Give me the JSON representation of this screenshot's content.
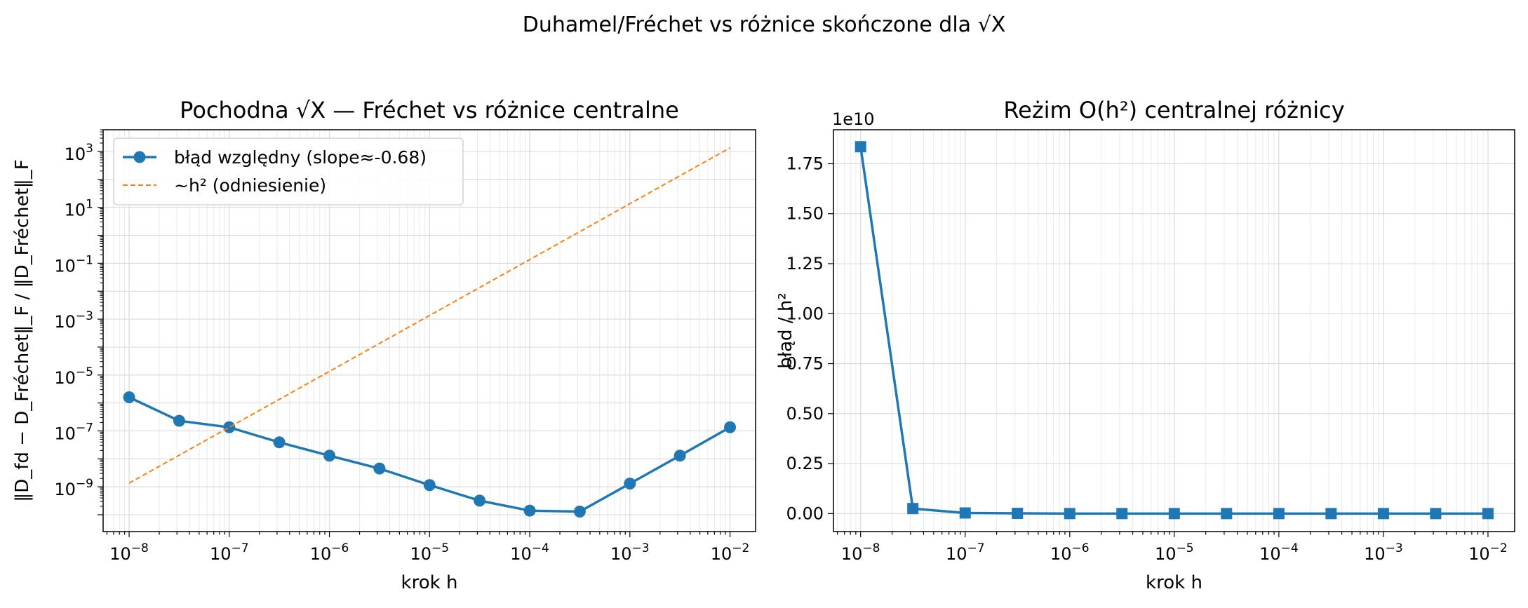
{
  "figure": {
    "suptitle": "Duhamel/Fréchet vs różnice skończone dla √X"
  },
  "colors": {
    "series_blue": "#1f77b4",
    "reference_orange": "#ff7f0e",
    "grid": "#d9d9d9",
    "axes": "#000000"
  },
  "chart_data": [
    {
      "type": "line",
      "title": "Pochodna √X — Fréchet vs różnice centralne",
      "xlabel": "krok h",
      "ylabel": "‖D_fd − D_Fréchet‖_F / ‖D_Fréchet‖_F",
      "xscale": "log",
      "yscale": "log",
      "xlim": [
        5.5e-09,
        0.018
      ],
      "ylim": [
        2.5e-11,
        6000.0
      ],
      "xticks": [
        {
          "value": 1e-08,
          "base": "10",
          "exp": "−8"
        },
        {
          "value": 1e-07,
          "base": "10",
          "exp": "−7"
        },
        {
          "value": 1e-06,
          "base": "10",
          "exp": "−6"
        },
        {
          "value": 1e-05,
          "base": "10",
          "exp": "−5"
        },
        {
          "value": 0.0001,
          "base": "10",
          "exp": "−4"
        },
        {
          "value": 0.001,
          "base": "10",
          "exp": "−3"
        },
        {
          "value": 0.01,
          "base": "10",
          "exp": "−2"
        }
      ],
      "yticks": [
        {
          "value": 1e-09,
          "base": "10",
          "exp": "−9"
        },
        {
          "value": 1e-07,
          "base": "10",
          "exp": "−7"
        },
        {
          "value": 1e-05,
          "base": "10",
          "exp": "−5"
        },
        {
          "value": 0.001,
          "base": "10",
          "exp": "−3"
        },
        {
          "value": 0.1,
          "base": "10",
          "exp": "−1"
        },
        {
          "value": 10,
          "base": "10",
          "exp": "1"
        },
        {
          "value": 1000,
          "base": "10",
          "exp": "3"
        }
      ],
      "grid": true,
      "legend_position": "upper-left",
      "series": [
        {
          "name": "błąd względny (slope≈-0.68)",
          "style": "solid-marker-circle",
          "color": "#1f77b4",
          "x": [
            1e-08,
            3.16e-08,
            1e-07,
            3.16e-07,
            1e-06,
            3.16e-06,
            1e-05,
            3.16e-05,
            0.0001,
            0.000316,
            0.001,
            0.00316,
            0.01
          ],
          "y": [
            1.6e-06,
            2.3e-07,
            1.35e-07,
            3.9e-08,
            1.3e-08,
            4.5e-09,
            1.15e-09,
            3.2e-10,
            1.4e-10,
            1.3e-10,
            1.3e-09,
            1.3e-08,
            1.35e-07
          ]
        },
        {
          "name": "~h² (odniesienie)",
          "style": "dashed",
          "color": "#ff7f0e",
          "x": [
            1e-08,
            0.01
          ],
          "y": [
            1.35e-09,
            1350.0
          ]
        }
      ]
    },
    {
      "type": "line",
      "title": "Reżim O(h²) centralnej różnicy",
      "xlabel": "krok h",
      "ylabel": "błąd / h²",
      "xscale": "log",
      "yscale": "linear",
      "offset_text": "1e10",
      "xlim": [
        5.5e-09,
        0.018
      ],
      "ylim": [
        -0.09,
        1.92
      ],
      "xticks": [
        {
          "value": 1e-08,
          "base": "10",
          "exp": "−8"
        },
        {
          "value": 1e-07,
          "base": "10",
          "exp": "−7"
        },
        {
          "value": 1e-06,
          "base": "10",
          "exp": "−6"
        },
        {
          "value": 1e-05,
          "base": "10",
          "exp": "−5"
        },
        {
          "value": 0.0001,
          "base": "10",
          "exp": "−4"
        },
        {
          "value": 0.001,
          "base": "10",
          "exp": "−3"
        },
        {
          "value": 0.01,
          "base": "10",
          "exp": "−2"
        }
      ],
      "yticks": [
        {
          "value": 0.0,
          "label": "0.00"
        },
        {
          "value": 0.25,
          "label": "0.25"
        },
        {
          "value": 0.5,
          "label": "0.50"
        },
        {
          "value": 0.75,
          "label": "0.75"
        },
        {
          "value": 1.0,
          "label": "1.00"
        },
        {
          "value": 1.25,
          "label": "1.25"
        },
        {
          "value": 1.5,
          "label": "1.50"
        },
        {
          "value": 1.75,
          "label": "1.75"
        }
      ],
      "grid": true,
      "series": [
        {
          "style": "solid-marker-square",
          "color": "#1f77b4",
          "x": [
            1e-08,
            3.16e-08,
            1e-07,
            3.16e-07,
            1e-06,
            3.16e-06,
            1e-05,
            3.16e-05,
            0.0001,
            0.000316,
            0.001,
            0.00316,
            0.01
          ],
          "y": [
            1.835,
            0.025,
            0.003,
            0.001,
            0.0,
            0.0,
            0.0,
            0.0,
            0.0,
            0.0,
            0.0,
            0.0,
            0.0
          ]
        }
      ]
    }
  ]
}
